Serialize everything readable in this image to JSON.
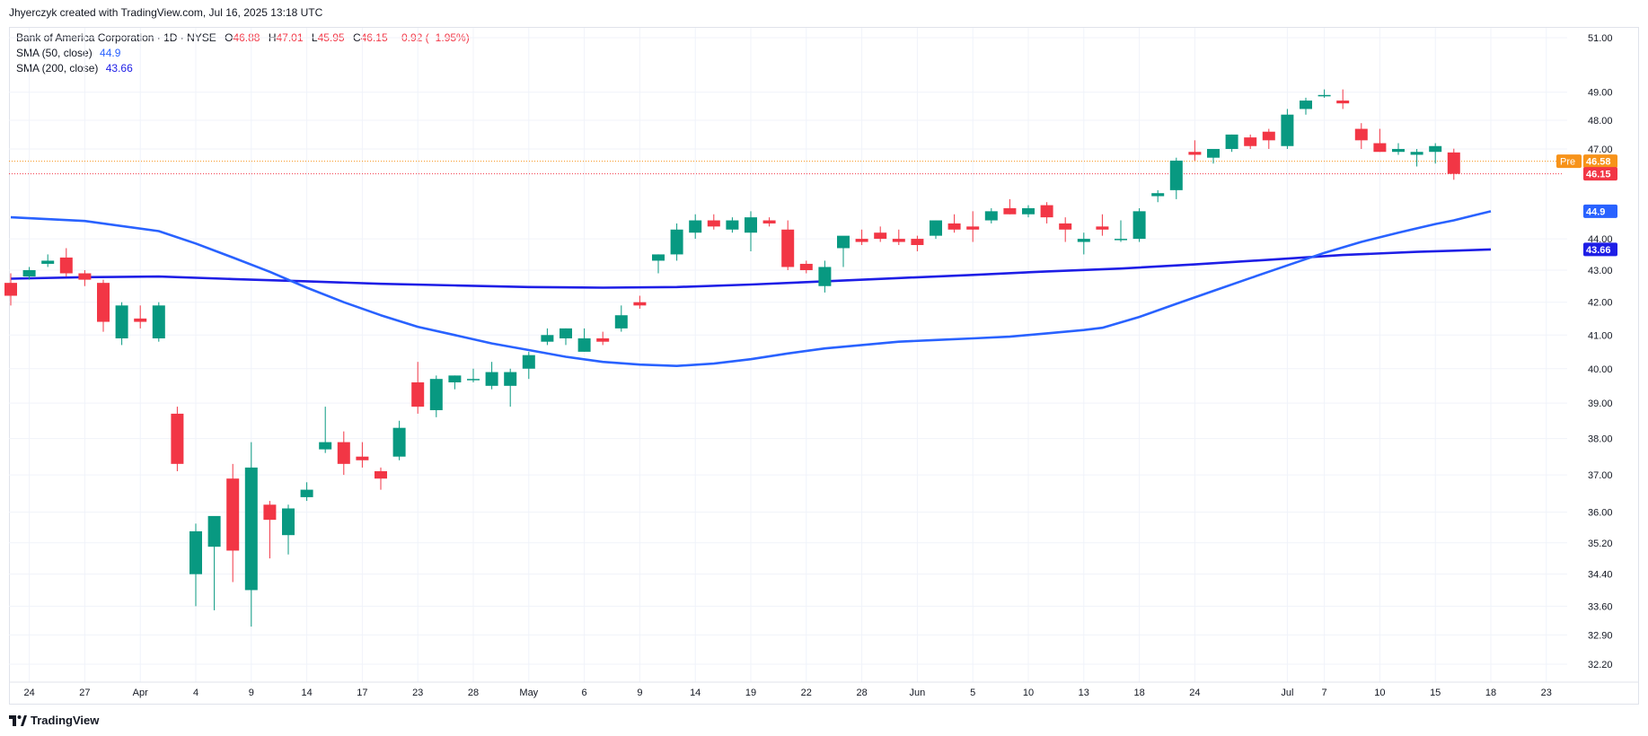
{
  "header": {
    "credit": "Jhyerczyk created with TradingView.com, Jul 16, 2025 13:18 UTC"
  },
  "legend": {
    "symbol": "Bank of America Corporation · 1D · NYSE",
    "o_label": "O",
    "o_value": "46.88",
    "h_label": "H",
    "h_value": "47.01",
    "l_label": "L",
    "l_value": "45.95",
    "c_label": "C",
    "c_value": "46.15",
    "change": "−0.92 (−1.95%)",
    "sma50_label": "SMA (50, close)",
    "sma50_value": "44.9",
    "sma200_label": "SMA (200, close)",
    "sma200_value": "43.66"
  },
  "footer": {
    "brand": "TradingView"
  },
  "colors": {
    "up": "#089981",
    "down": "#f23645",
    "sma50": "#2962ff",
    "sma200": "#1e1ee6",
    "pre": "#f7931a",
    "grid": "#f0f3fa",
    "axis_text": "#131722"
  },
  "chart_data": {
    "type": "candlestick",
    "y_scale": "log",
    "ylim": [
      31.8,
      52.0
    ],
    "y_ticks": [
      "51.00",
      "49.00",
      "48.00",
      "47.00",
      "44.00",
      "43.00",
      "42.00",
      "41.00",
      "40.00",
      "39.00",
      "38.00",
      "37.00",
      "36.00",
      "35.20",
      "34.40",
      "33.60",
      "32.90",
      "32.20"
    ],
    "x_ticks": [
      {
        "label": "24",
        "i": 1
      },
      {
        "label": "27",
        "i": 4
      },
      {
        "label": "Apr",
        "i": 7
      },
      {
        "label": "4",
        "i": 10
      },
      {
        "label": "9",
        "i": 13
      },
      {
        "label": "14",
        "i": 16
      },
      {
        "label": "17",
        "i": 19
      },
      {
        "label": "23",
        "i": 22
      },
      {
        "label": "28",
        "i": 25
      },
      {
        "label": "May",
        "i": 28
      },
      {
        "label": "6",
        "i": 31
      },
      {
        "label": "9",
        "i": 34
      },
      {
        "label": "14",
        "i": 37
      },
      {
        "label": "19",
        "i": 40
      },
      {
        "label": "22",
        "i": 43
      },
      {
        "label": "28",
        "i": 46
      },
      {
        "label": "Jun",
        "i": 49
      },
      {
        "label": "5",
        "i": 52
      },
      {
        "label": "10",
        "i": 55
      },
      {
        "label": "13",
        "i": 58
      },
      {
        "label": "18",
        "i": 61
      },
      {
        "label": "24",
        "i": 64
      },
      {
        "label": "Jul",
        "i": 69
      },
      {
        "label": "7",
        "i": 71
      },
      {
        "label": "10",
        "i": 74
      },
      {
        "label": "15",
        "i": 77
      },
      {
        "label": "18",
        "i": 80
      },
      {
        "label": "23",
        "i": 83
      }
    ],
    "candles": [
      [
        42.6,
        42.9,
        41.9,
        42.2
      ],
      [
        42.8,
        43.1,
        42.7,
        43.0
      ],
      [
        43.2,
        43.5,
        43.1,
        43.3
      ],
      [
        43.4,
        43.7,
        42.8,
        42.9
      ],
      [
        42.9,
        43.0,
        42.5,
        42.7
      ],
      [
        42.6,
        42.7,
        41.1,
        41.4
      ],
      [
        40.9,
        42.0,
        40.7,
        41.9
      ],
      [
        41.5,
        41.9,
        41.2,
        41.4
      ],
      [
        40.9,
        42.0,
        40.8,
        41.9
      ],
      [
        38.7,
        38.9,
        37.1,
        37.3
      ],
      [
        34.4,
        35.7,
        33.6,
        35.5
      ],
      [
        35.1,
        35.8,
        33.5,
        35.9
      ],
      [
        36.9,
        37.3,
        34.2,
        35.0
      ],
      [
        34.0,
        37.9,
        33.1,
        37.2
      ],
      [
        36.2,
        36.3,
        34.8,
        35.8
      ],
      [
        35.4,
        36.2,
        34.9,
        36.1
      ],
      [
        36.4,
        36.8,
        36.3,
        36.6
      ],
      [
        37.7,
        38.9,
        37.6,
        37.9
      ],
      [
        37.9,
        38.2,
        37.0,
        37.3
      ],
      [
        37.5,
        37.9,
        37.2,
        37.4
      ],
      [
        37.1,
        37.2,
        36.6,
        36.9
      ],
      [
        37.5,
        38.5,
        37.4,
        38.3
      ],
      [
        39.6,
        40.2,
        38.7,
        38.9
      ],
      [
        38.8,
        39.8,
        38.6,
        39.7
      ],
      [
        39.6,
        39.8,
        39.4,
        39.8
      ],
      [
        39.7,
        40.0,
        39.6,
        39.7
      ],
      [
        39.5,
        40.2,
        39.4,
        39.9
      ],
      [
        39.5,
        40.0,
        38.9,
        39.9
      ],
      [
        40.0,
        40.5,
        39.7,
        40.4
      ],
      [
        40.8,
        41.2,
        40.7,
        41.0
      ],
      [
        40.9,
        41.2,
        40.7,
        41.2
      ],
      [
        40.5,
        41.2,
        40.5,
        40.9
      ],
      [
        40.9,
        41.1,
        40.7,
        40.8
      ],
      [
        41.2,
        41.9,
        41.1,
        41.6
      ],
      [
        42.0,
        42.2,
        41.8,
        41.9
      ],
      [
        43.3,
        43.5,
        42.9,
        43.5
      ],
      [
        43.5,
        44.5,
        43.3,
        44.3
      ],
      [
        44.2,
        44.8,
        44.0,
        44.6
      ],
      [
        44.6,
        44.8,
        44.3,
        44.4
      ],
      [
        44.3,
        44.7,
        44.2,
        44.6
      ],
      [
        44.2,
        44.9,
        43.6,
        44.7
      ],
      [
        44.6,
        44.7,
        44.4,
        44.5
      ],
      [
        44.3,
        44.6,
        43.0,
        43.1
      ],
      [
        43.2,
        43.3,
        42.9,
        43.0
      ],
      [
        42.5,
        43.3,
        42.3,
        43.1
      ],
      [
        43.7,
        44.0,
        43.1,
        44.1
      ],
      [
        44.0,
        44.3,
        43.8,
        43.9
      ],
      [
        44.2,
        44.4,
        43.9,
        44.0
      ],
      [
        44.0,
        44.3,
        43.8,
        43.9
      ],
      [
        44.0,
        44.1,
        43.6,
        43.8
      ],
      [
        44.1,
        44.6,
        44.0,
        44.6
      ],
      [
        44.5,
        44.8,
        44.2,
        44.3
      ],
      [
        44.4,
        44.9,
        43.9,
        44.3
      ],
      [
        44.6,
        45.0,
        44.5,
        44.9
      ],
      [
        45.0,
        45.3,
        44.8,
        44.8
      ],
      [
        44.8,
        45.1,
        44.7,
        45.0
      ],
      [
        45.1,
        45.2,
        44.5,
        44.7
      ],
      [
        44.5,
        44.7,
        43.9,
        44.3
      ],
      [
        43.9,
        44.2,
        43.5,
        44.0
      ],
      [
        44.4,
        44.8,
        44.1,
        44.3
      ],
      [
        44.0,
        44.6,
        43.9,
        44.0
      ],
      [
        44.0,
        45.0,
        43.9,
        44.9
      ],
      [
        45.4,
        45.6,
        45.2,
        45.5
      ],
      [
        45.6,
        46.7,
        45.3,
        46.6
      ],
      [
        46.9,
        47.3,
        46.6,
        46.8
      ],
      [
        46.7,
        47.0,
        46.5,
        47.0
      ],
      [
        47.0,
        47.5,
        46.9,
        47.5
      ],
      [
        47.4,
        47.5,
        47.0,
        47.1
      ],
      [
        47.6,
        47.7,
        47.0,
        47.3
      ],
      [
        47.1,
        48.4,
        47.0,
        48.2
      ],
      [
        48.4,
        48.8,
        48.2,
        48.7
      ],
      [
        48.9,
        49.1,
        48.8,
        48.9
      ],
      [
        48.7,
        49.1,
        48.4,
        48.6
      ],
      [
        47.7,
        47.9,
        47.0,
        47.3
      ],
      [
        47.2,
        47.7,
        46.9,
        46.9
      ],
      [
        46.9,
        47.2,
        46.8,
        47.0
      ],
      [
        46.8,
        47.0,
        46.4,
        46.9
      ],
      [
        46.9,
        47.2,
        46.5,
        47.1
      ],
      [
        46.88,
        47.01,
        45.95,
        46.15
      ]
    ],
    "sma50": [
      [
        0,
        44.7
      ],
      [
        4,
        44.58
      ],
      [
        8,
        44.25
      ],
      [
        10,
        43.85
      ],
      [
        12,
        43.4
      ],
      [
        14,
        42.95
      ],
      [
        16,
        42.45
      ],
      [
        18,
        42.0
      ],
      [
        20,
        41.6
      ],
      [
        22,
        41.25
      ],
      [
        24,
        41.0
      ],
      [
        26,
        40.75
      ],
      [
        28,
        40.55
      ],
      [
        30,
        40.35
      ],
      [
        32,
        40.2
      ],
      [
        34,
        40.12
      ],
      [
        36,
        40.08
      ],
      [
        38,
        40.15
      ],
      [
        40,
        40.28
      ],
      [
        42,
        40.45
      ],
      [
        44,
        40.6
      ],
      [
        46,
        40.7
      ],
      [
        48,
        40.8
      ],
      [
        50,
        40.85
      ],
      [
        52,
        40.9
      ],
      [
        54,
        40.95
      ],
      [
        56,
        41.05
      ],
      [
        58,
        41.15
      ],
      [
        59,
        41.22
      ],
      [
        61,
        41.55
      ],
      [
        63,
        41.95
      ],
      [
        65,
        42.35
      ],
      [
        67,
        42.75
      ],
      [
        69,
        43.15
      ],
      [
        71,
        43.55
      ],
      [
        73,
        43.9
      ],
      [
        75,
        44.2
      ],
      [
        77,
        44.48
      ],
      [
        78,
        44.6
      ],
      [
        79,
        44.75
      ],
      [
        80,
        44.9
      ]
    ],
    "sma200": [
      [
        0,
        42.73
      ],
      [
        4,
        42.78
      ],
      [
        8,
        42.8
      ],
      [
        12,
        42.72
      ],
      [
        16,
        42.65
      ],
      [
        20,
        42.57
      ],
      [
        24,
        42.52
      ],
      [
        28,
        42.47
      ],
      [
        32,
        42.45
      ],
      [
        36,
        42.47
      ],
      [
        40,
        42.55
      ],
      [
        44,
        42.65
      ],
      [
        48,
        42.75
      ],
      [
        52,
        42.85
      ],
      [
        56,
        42.96
      ],
      [
        60,
        43.05
      ],
      [
        64,
        43.18
      ],
      [
        68,
        43.33
      ],
      [
        72,
        43.48
      ],
      [
        76,
        43.58
      ],
      [
        78,
        43.62
      ],
      [
        80,
        43.66
      ]
    ],
    "price_labels": [
      {
        "tag": "Pre",
        "value": 46.58,
        "text": "46.58",
        "color": "#f7931a"
      },
      {
        "tag": "",
        "value": 46.15,
        "text": "46.15",
        "color": "#f23645"
      },
      {
        "tag": "",
        "value": 44.9,
        "text": "44.9",
        "color": "#2962ff"
      },
      {
        "tag": "",
        "value": 43.66,
        "text": "43.66",
        "color": "#1e1ee6"
      }
    ]
  }
}
